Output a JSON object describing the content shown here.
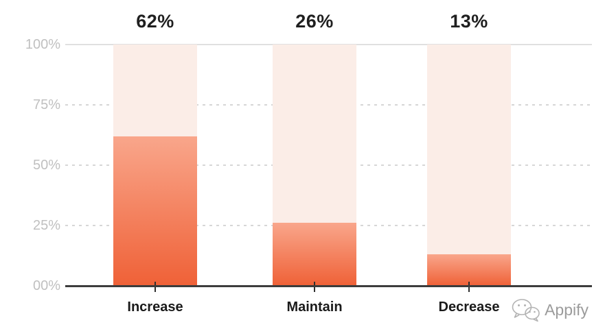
{
  "chart_data": {
    "type": "bar",
    "title": "",
    "xlabel": "",
    "ylabel": "",
    "categories": [
      "Increase",
      "Maintain",
      "Decrease"
    ],
    "values": [
      62,
      26,
      13
    ],
    "value_labels": [
      "62%",
      "26%",
      "13%"
    ],
    "y_ticks": [
      100,
      75,
      50,
      25,
      0
    ],
    "y_tick_labels": [
      "100%",
      "75%",
      "50%",
      "25%",
      "00%"
    ],
    "ylim": [
      0,
      100
    ],
    "grid": "horizontal, solid at 100%, dashed at 25/50/75, hidden behind bars",
    "legend": "none",
    "bar_track_color": "#FBEDE7",
    "bar_gradient_top": "#F9A68B",
    "bar_gradient_bottom": "#EF6137"
  },
  "colors": {
    "background": "#FFFFFF",
    "value_label": "#1F1F1F",
    "category_label": "#1A1A1A",
    "y_axis_label": "#C0C0C0",
    "gridline_solid": "#E0E0E0",
    "gridline_dashed": "#D6D6D6",
    "axis_line": "#3C3C3C",
    "watermark_text": "#9B9B9B"
  },
  "watermark": {
    "label": "Appify",
    "icon": "wechat-icon"
  }
}
